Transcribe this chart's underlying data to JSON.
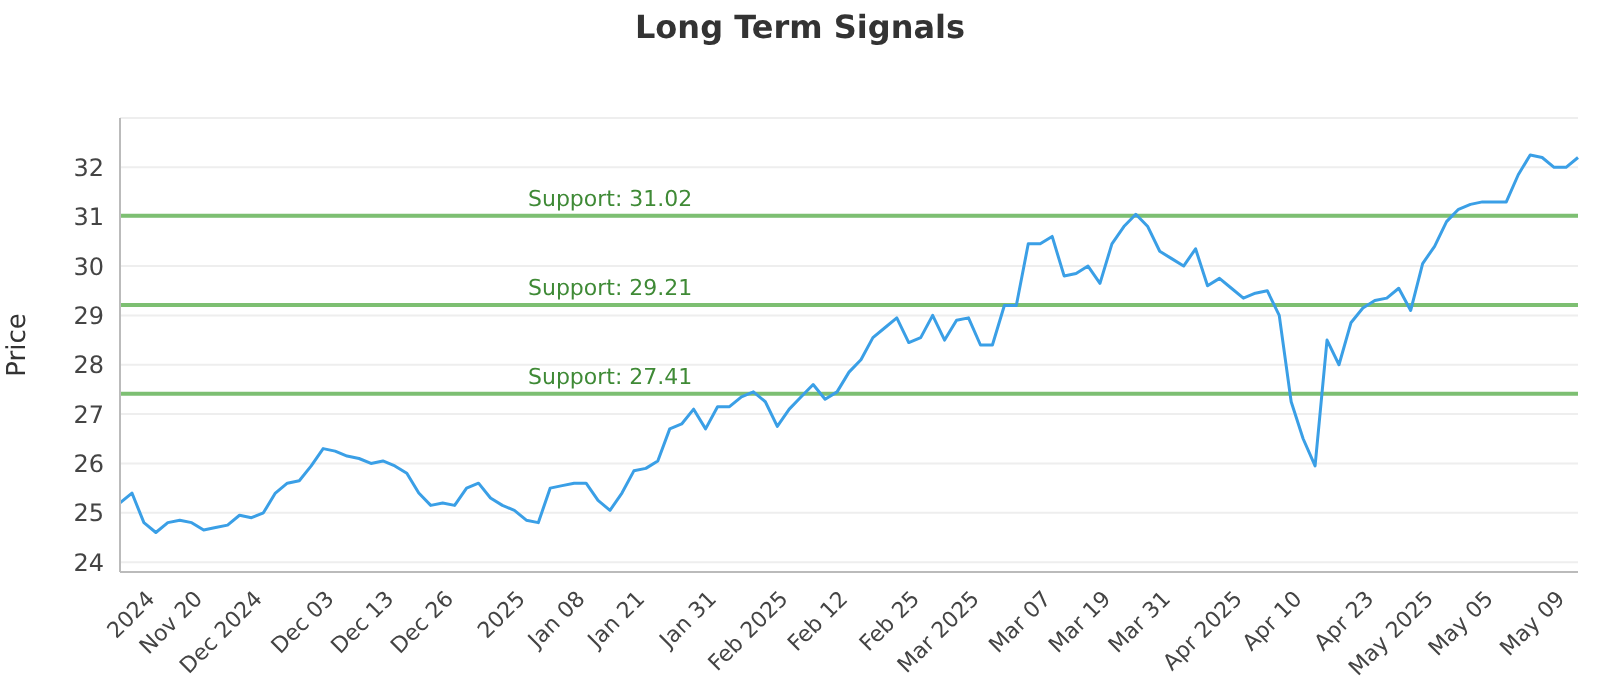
{
  "chart_data": {
    "type": "line",
    "title": "Long Term Signals",
    "ylabel": "Price",
    "categories": [
      null,
      null,
      null,
      "2024",
      null,
      null,
      null,
      "Nov 20",
      null,
      null,
      null,
      null,
      "Dec 2024",
      null,
      null,
      null,
      null,
      null,
      "Dec 03",
      null,
      null,
      null,
      null,
      "Dec 13",
      null,
      null,
      null,
      null,
      "Dec 26",
      null,
      null,
      null,
      null,
      null,
      "2025",
      null,
      null,
      null,
      null,
      "Jan 08",
      null,
      null,
      null,
      null,
      "Jan 21",
      null,
      null,
      null,
      null,
      null,
      "Jan 31",
      null,
      null,
      null,
      null,
      null,
      "Feb 2025",
      null,
      null,
      null,
      null,
      "Feb 12",
      null,
      null,
      null,
      null,
      null,
      "Feb 25",
      null,
      null,
      null,
      null,
      "Mar 2025",
      null,
      null,
      null,
      null,
      null,
      "Mar 07",
      null,
      null,
      null,
      null,
      "Mar 19",
      null,
      null,
      null,
      null,
      "Mar 31",
      null,
      null,
      null,
      null,
      null,
      "Apr 2025",
      null,
      null,
      null,
      null,
      "Apr 10",
      null,
      null,
      null,
      null,
      null,
      "Apr 23",
      null,
      null,
      null,
      null,
      "May 2025",
      null,
      null,
      null,
      null,
      "May 05",
      null,
      null,
      null,
      null,
      null,
      "May 09",
      null
    ],
    "series": [
      {
        "color": "#3a9fe6",
        "values": [
          25.2,
          25.4,
          24.8,
          24.6,
          24.8,
          24.85,
          24.8,
          24.65,
          24.7,
          24.75,
          24.95,
          24.9,
          25.0,
          25.4,
          25.6,
          25.65,
          25.95,
          26.3,
          26.25,
          26.15,
          26.1,
          26.0,
          26.05,
          25.95,
          25.8,
          25.4,
          25.15,
          25.2,
          25.15,
          25.5,
          25.6,
          25.3,
          25.15,
          25.05,
          24.85,
          24.8,
          25.5,
          25.55,
          25.6,
          25.6,
          25.25,
          25.05,
          25.4,
          25.85,
          25.9,
          26.05,
          26.7,
          26.8,
          27.1,
          26.7,
          27.15,
          27.15,
          27.35,
          27.45,
          27.25,
          26.75,
          27.1,
          27.35,
          27.6,
          27.3,
          27.45,
          27.85,
          28.1,
          28.55,
          28.75,
          28.95,
          28.45,
          28.55,
          29.0,
          28.5,
          28.9,
          28.95,
          28.4,
          28.4,
          29.2,
          29.2,
          30.45,
          30.45,
          30.6,
          29.8,
          29.85,
          30.0,
          29.65,
          30.45,
          30.8,
          31.05,
          30.8,
          30.3,
          30.15,
          30.0,
          30.35,
          29.6,
          29.75,
          29.55,
          29.35,
          29.45,
          29.5,
          29.0,
          27.25,
          26.5,
          25.95,
          28.5,
          28.0,
          28.85,
          29.15,
          29.3,
          29.35,
          29.55,
          29.1,
          30.05,
          30.4,
          30.9,
          31.15,
          31.25,
          31.3,
          31.3,
          31.3,
          31.85,
          32.25,
          32.2,
          32.0,
          32.0,
          32.2
        ]
      }
    ],
    "ylim": [
      23.8,
      33
    ],
    "yticks": [
      24,
      25,
      26,
      27,
      28,
      29,
      30,
      31,
      32
    ],
    "grid": "y",
    "marker": "none",
    "line_style": "solid",
    "ref_lines": [
      {
        "axis": "y",
        "value": 31.02,
        "label": "Support: 31.02",
        "color": "#7dbf72"
      },
      {
        "axis": "y",
        "value": 29.21,
        "label": "Support: 29.21",
        "color": "#7dbf72"
      },
      {
        "axis": "y",
        "value": 27.41,
        "label": "Support: 27.41",
        "color": "#7dbf72"
      }
    ]
  }
}
